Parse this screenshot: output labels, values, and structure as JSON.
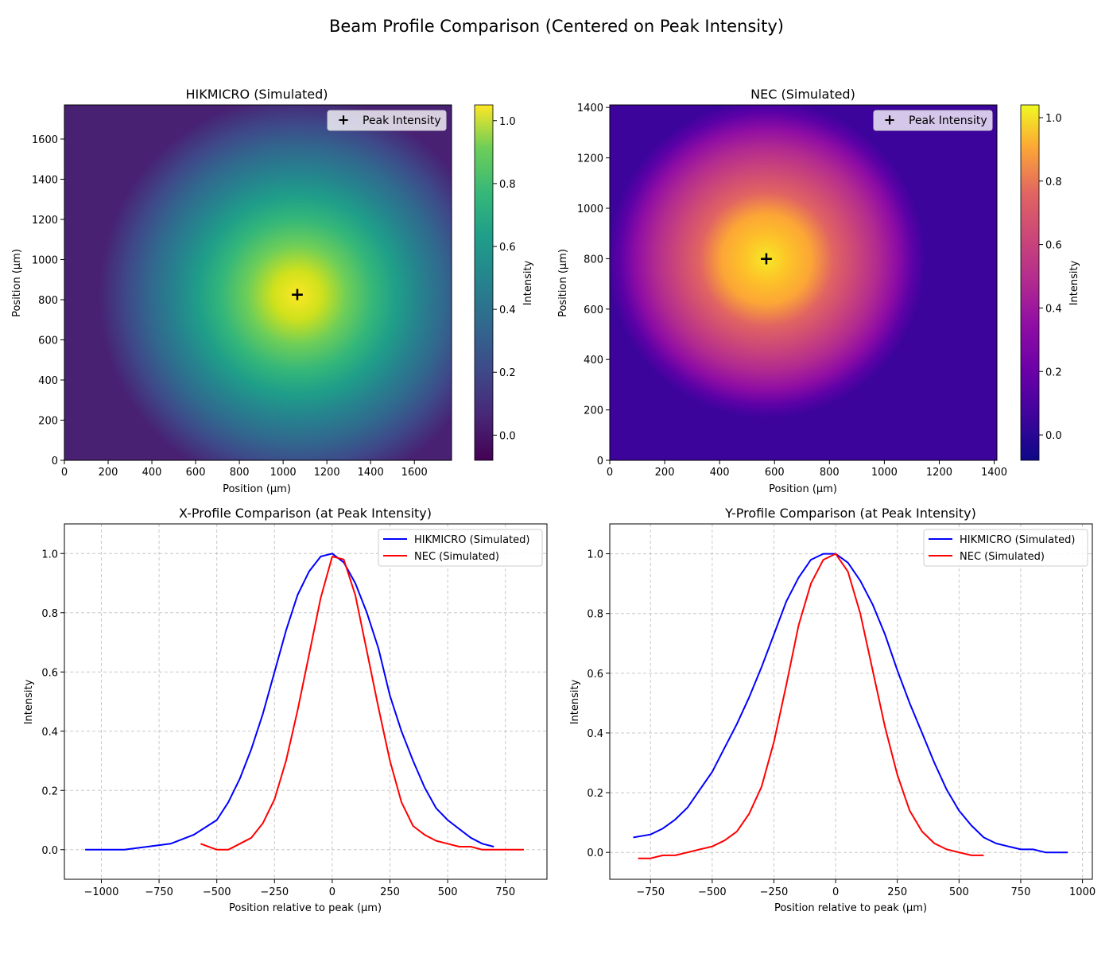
{
  "figure": {
    "suptitle": "Beam Profile Comparison (Centered on Peak Intensity)"
  },
  "colors": {
    "hikmicro_line": "#0000ff",
    "nec_line": "#ff0000",
    "grid": "#b0b0b0",
    "peak_marker": "#ffffff",
    "viridis_low": "#440154",
    "viridis_high": "#fde725",
    "plasma_low": "#0d0887",
    "plasma_high": "#f0f921"
  },
  "chart_data": [
    {
      "type": "heatmap",
      "title": "HIKMICRO (Simulated)",
      "xlabel": "Position (µm)",
      "ylabel": "Position (µm)",
      "xlim": [
        0,
        1770
      ],
      "ylim": [
        0,
        1770
      ],
      "xticks": [
        0,
        200,
        400,
        600,
        800,
        1000,
        1200,
        1400,
        1600
      ],
      "yticks": [
        0,
        200,
        400,
        600,
        800,
        1000,
        1200,
        1400,
        1600
      ],
      "colormap": "viridis",
      "peak": {
        "x": 1070,
        "y": 820
      },
      "beam_sigma_um": 300,
      "legend": [
        "Peak Intensity"
      ],
      "legend_position": "upper right",
      "colorbar": {
        "label": "Intensity",
        "range": [
          -0.08,
          1.05
        ],
        "ticks": [
          0.0,
          0.2,
          0.4,
          0.6,
          0.8,
          1.0
        ]
      }
    },
    {
      "type": "heatmap",
      "title": "NEC (Simulated)",
      "xlabel": "Position (µm)",
      "ylabel": "Position (µm)",
      "xlim": [
        0,
        1410
      ],
      "ylim": [
        0,
        1410
      ],
      "xticks": [
        0,
        200,
        400,
        600,
        800,
        1000,
        1200,
        1400
      ],
      "yticks": [
        0,
        200,
        400,
        600,
        800,
        1000,
        1200,
        1400
      ],
      "colormap": "plasma",
      "peak": {
        "x": 575,
        "y": 795
      },
      "beam_sigma_um": 160,
      "legend": [
        "Peak Intensity"
      ],
      "legend_position": "upper right",
      "colorbar": {
        "label": "Intensity",
        "range": [
          -0.08,
          1.04
        ],
        "ticks": [
          0.0,
          0.2,
          0.4,
          0.6,
          0.8,
          1.0
        ]
      }
    },
    {
      "type": "line",
      "title": "X-Profile Comparison (at Peak Intensity)",
      "xlabel": "Position relative to peak (µm)",
      "ylabel": "Intensity",
      "xlim": [
        -1160,
        930
      ],
      "ylim": [
        -0.1,
        1.1
      ],
      "xticks": [
        -1000,
        -750,
        -500,
        -250,
        0,
        250,
        500,
        750
      ],
      "yticks": [
        0.0,
        0.2,
        0.4,
        0.6,
        0.8,
        1.0
      ],
      "grid": true,
      "legend_position": "upper right",
      "series": [
        {
          "name": "HIKMICRO (Simulated)",
          "color": "#0000ff",
          "x": [
            -1070,
            -1000,
            -900,
            -800,
            -700,
            -600,
            -500,
            -450,
            -400,
            -350,
            -300,
            -250,
            -200,
            -150,
            -100,
            -50,
            0,
            50,
            100,
            150,
            200,
            250,
            300,
            350,
            400,
            450,
            500,
            550,
            600,
            650,
            700
          ],
          "y": [
            0.0,
            0.0,
            0.0,
            0.01,
            0.02,
            0.05,
            0.1,
            0.16,
            0.24,
            0.34,
            0.46,
            0.6,
            0.74,
            0.86,
            0.94,
            0.99,
            1.0,
            0.97,
            0.9,
            0.8,
            0.68,
            0.52,
            0.4,
            0.3,
            0.21,
            0.14,
            0.1,
            0.07,
            0.04,
            0.02,
            0.01
          ]
        },
        {
          "name": "NEC (Simulated)",
          "color": "#ff0000",
          "x": [
            -570,
            -500,
            -450,
            -400,
            -350,
            -300,
            -250,
            -200,
            -150,
            -100,
            -50,
            0,
            50,
            100,
            150,
            200,
            250,
            300,
            350,
            400,
            450,
            500,
            550,
            600,
            650,
            700,
            750,
            830
          ],
          "y": [
            0.02,
            0.0,
            0.0,
            0.02,
            0.04,
            0.09,
            0.17,
            0.3,
            0.47,
            0.66,
            0.85,
            0.99,
            0.98,
            0.86,
            0.67,
            0.48,
            0.3,
            0.16,
            0.08,
            0.05,
            0.03,
            0.02,
            0.01,
            0.01,
            0.0,
            0.0,
            0.0,
            0.0
          ]
        }
      ]
    },
    {
      "type": "line",
      "title": "Y-Profile Comparison (at Peak Intensity)",
      "xlabel": "Position relative to peak (µm)",
      "ylabel": "Intensity",
      "xlim": [
        -915,
        1040
      ],
      "ylim": [
        -0.09,
        1.1
      ],
      "xticks": [
        -750,
        -500,
        -250,
        0,
        250,
        500,
        750,
        1000
      ],
      "yticks": [
        0.0,
        0.2,
        0.4,
        0.6,
        0.8,
        1.0
      ],
      "grid": true,
      "legend_position": "upper right",
      "series": [
        {
          "name": "HIKMICRO (Simulated)",
          "color": "#0000ff",
          "x": [
            -820,
            -750,
            -700,
            -650,
            -600,
            -550,
            -500,
            -450,
            -400,
            -350,
            -300,
            -250,
            -200,
            -150,
            -100,
            -50,
            0,
            50,
            100,
            150,
            200,
            250,
            300,
            350,
            400,
            450,
            500,
            550,
            600,
            650,
            700,
            750,
            800,
            850,
            940
          ],
          "y": [
            0.05,
            0.06,
            0.08,
            0.11,
            0.15,
            0.21,
            0.27,
            0.35,
            0.43,
            0.52,
            0.62,
            0.73,
            0.84,
            0.92,
            0.98,
            1.0,
            1.0,
            0.97,
            0.91,
            0.83,
            0.73,
            0.61,
            0.5,
            0.4,
            0.3,
            0.21,
            0.14,
            0.09,
            0.05,
            0.03,
            0.02,
            0.01,
            0.01,
            0.0,
            0.0
          ]
        },
        {
          "name": "NEC (Simulated)",
          "color": "#ff0000",
          "x": [
            -800,
            -750,
            -700,
            -650,
            -600,
            -550,
            -500,
            -450,
            -400,
            -350,
            -300,
            -250,
            -200,
            -150,
            -100,
            -50,
            0,
            50,
            100,
            150,
            200,
            250,
            300,
            350,
            400,
            450,
            500,
            550,
            600
          ],
          "y": [
            -0.02,
            -0.02,
            -0.01,
            -0.01,
            0.0,
            0.01,
            0.02,
            0.04,
            0.07,
            0.13,
            0.22,
            0.37,
            0.56,
            0.76,
            0.9,
            0.98,
            1.0,
            0.94,
            0.8,
            0.61,
            0.42,
            0.26,
            0.14,
            0.07,
            0.03,
            0.01,
            0.0,
            -0.01,
            -0.01
          ]
        }
      ]
    }
  ]
}
